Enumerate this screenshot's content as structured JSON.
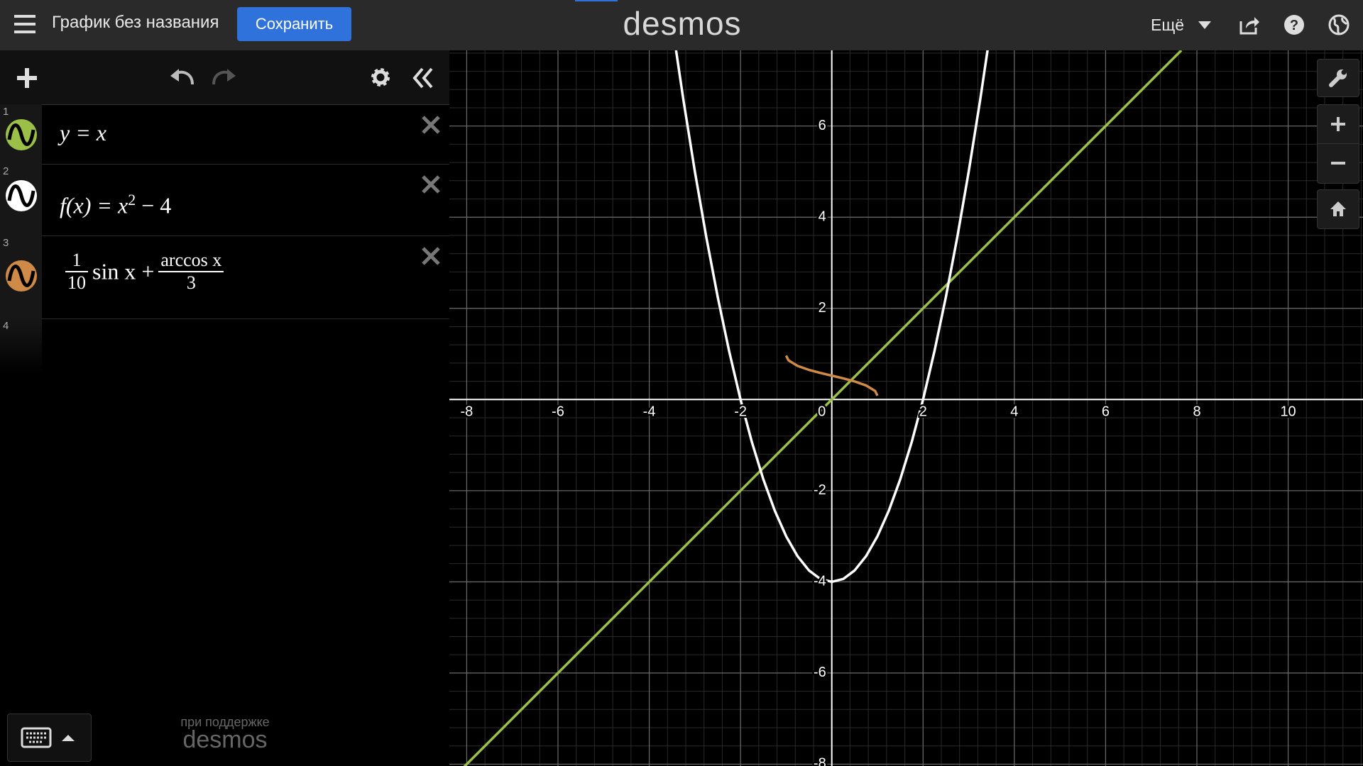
{
  "header": {
    "title": "График без названия",
    "save_button": "Сохранить",
    "logo": "desmos",
    "more_menu": "Ещё"
  },
  "expressions": [
    {
      "number": 1,
      "text": "y = x"
    },
    {
      "number": 2,
      "parts": [
        "f(x) = x",
        "2",
        " − 4"
      ]
    },
    {
      "number": 3,
      "fraction1": {
        "numerator": "1",
        "denominator": "10"
      },
      "middle": "sin x +",
      "fraction2": {
        "numerator": "arccos x",
        "denominator": "3"
      }
    }
  ],
  "empty_row_number": 4,
  "footer": {
    "powered_by": "при поддержке",
    "logo": "desmos"
  },
  "chart_data": {
    "type": "line",
    "xlim": [
      -8.38,
      11.64
    ],
    "ylim": [
      -8.04,
      7.66
    ],
    "xticks": [
      -8,
      -6,
      -4,
      -2,
      0,
      2,
      4,
      6,
      8,
      10
    ],
    "yticks": [
      -8,
      -6,
      -4,
      -2,
      2,
      4,
      6
    ],
    "grid": true,
    "series": [
      {
        "color": "#9cbf48",
        "x": [
          -8.38,
          7.66
        ],
        "values": [
          -8.38,
          7.66
        ]
      },
      {
        "color": "#ffffff",
        "x": [
          -3.5,
          -3.25,
          -3,
          -2.75,
          -2.5,
          -2.25,
          -2,
          -1.75,
          -1.5,
          -1.25,
          -1,
          -0.75,
          -0.5,
          -0.25,
          0,
          0.25,
          0.5,
          0.75,
          1,
          1.25,
          1.5,
          1.75,
          2,
          2.25,
          2.5,
          2.75,
          3,
          3.25,
          3.5
        ],
        "values": [
          8.25,
          6.5625,
          5,
          3.5625,
          2.25,
          1.0625,
          0,
          -0.9375,
          -1.75,
          -2.4375,
          -3,
          -3.4375,
          -3.75,
          -3.9375,
          -4,
          -3.9375,
          -3.75,
          -3.4375,
          -3,
          -2.4375,
          -1.75,
          -0.9375,
          0,
          1.0625,
          2.25,
          3.5625,
          5,
          6.5625,
          8.25
        ]
      },
      {
        "color": "#d08a48",
        "x": [
          -1,
          -0.95,
          -0.75,
          -0.5,
          -0.25,
          0,
          0.25,
          0.5,
          0.75,
          0.95,
          1
        ],
        "values": [
          0.963,
          0.86,
          0.738,
          0.65,
          0.583,
          0.524,
          0.464,
          0.397,
          0.309,
          0.187,
          0.084
        ]
      }
    ]
  }
}
